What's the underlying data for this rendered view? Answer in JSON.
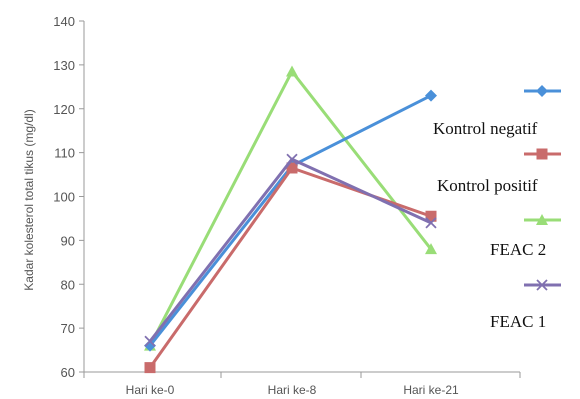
{
  "chart_data": {
    "type": "line",
    "categories": [
      "Hari ke-0",
      "Hari ke-8",
      "Hari ke-21"
    ],
    "ylabel": "Kadar kolesterol total tikus (mg/dl)",
    "xlabel": "",
    "ylim": [
      60,
      140
    ],
    "yticks": [
      60,
      70,
      80,
      90,
      100,
      110,
      120,
      130,
      140
    ],
    "grid": false,
    "legend_position": "right",
    "series": [
      {
        "name": "Kontrol negatif",
        "values": [
          66,
          107,
          123
        ],
        "color": "#4a90d9",
        "marker": "diamond"
      },
      {
        "name": "Kontrol positif",
        "values": [
          61,
          106.5,
          95.5
        ],
        "color": "#c96b6b",
        "marker": "square"
      },
      {
        "name": "FEAC 2",
        "values": [
          66,
          128.5,
          88
        ],
        "color": "#99dd77",
        "marker": "triangle"
      },
      {
        "name": "FEAC 1",
        "values": [
          67,
          108.5,
          94
        ],
        "color": "#8070b0",
        "marker": "x"
      }
    ]
  }
}
